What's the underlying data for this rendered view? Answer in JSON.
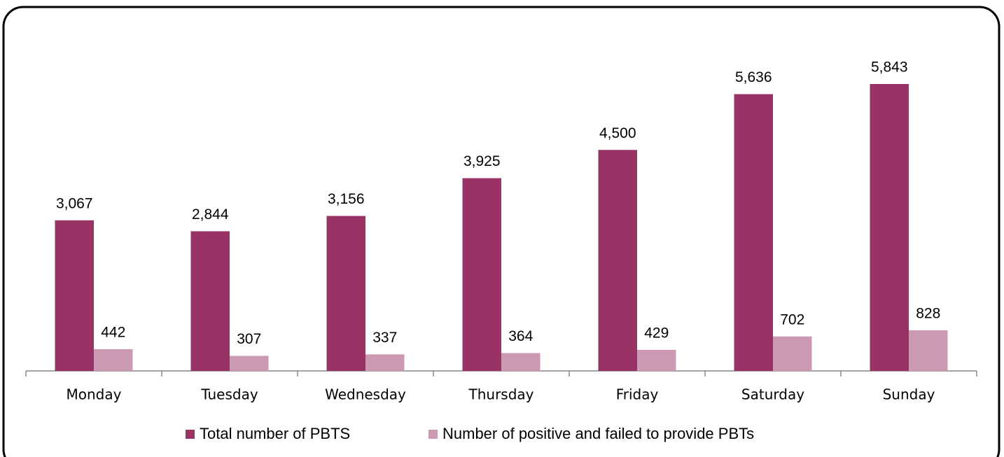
{
  "chart_data": {
    "type": "bar",
    "categories": [
      "Monday",
      "Tuesday",
      "Wednesday",
      "Thursday",
      "Friday",
      "Saturday",
      "Sunday"
    ],
    "series": [
      {
        "name": "Total number of PBTS",
        "color": "#993366",
        "values": [
          3067,
          2844,
          3156,
          3925,
          4500,
          5636,
          5843
        ],
        "value_labels": [
          "3,067",
          "2,844",
          "3,156",
          "3,925",
          "4,500",
          "5,636",
          "5,843"
        ]
      },
      {
        "name": "Number of positive and failed to provide PBTs",
        "color": "#cc99b3",
        "values": [
          442,
          307,
          337,
          364,
          429,
          702,
          828
        ]
      }
    ],
    "legend": "bottom"
  }
}
